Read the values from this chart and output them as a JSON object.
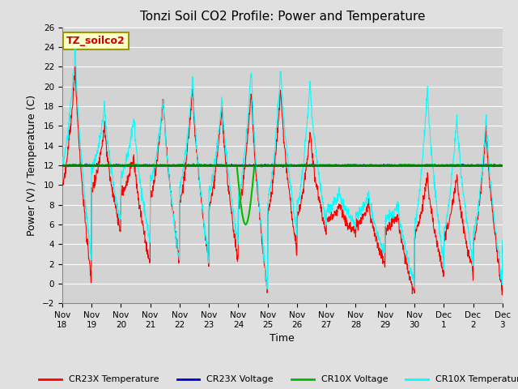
{
  "title": "Tonzi Soil CO2 Profile: Power and Temperature",
  "ylabel": "Power (V) / Temperature (C)",
  "xlabel": "Time",
  "ylim": [
    -2,
    26
  ],
  "yticks": [
    -2,
    0,
    2,
    4,
    6,
    8,
    10,
    12,
    14,
    16,
    18,
    20,
    22,
    24,
    26
  ],
  "x_tick_labels": [
    "Nov 18",
    "Nov 19",
    "Nov 20",
    "Nov 21",
    "Nov 22",
    "Nov 23",
    "Nov 24",
    "Nov 25",
    "Nov 26",
    "Nov 27",
    "Nov 28",
    "Nov 29",
    "Nov 30",
    "Dec 1",
    "Dec 2",
    "Dec 3"
  ],
  "horizontal_line_y": 12.0,
  "horizontal_line_color": "#008000",
  "cr23x_temp_color": "#FF0000",
  "cr23x_volt_color": "#0000CD",
  "cr10x_volt_color": "#00BB00",
  "cr10x_temp_color": "#00FFFF",
  "fig_bg_color": "#E0E0E0",
  "plot_bg_color": "#D3D3D3",
  "grid_color": "#FFFFFF",
  "legend_box_facecolor": "#FFFFCC",
  "legend_box_edgecolor": "#999900",
  "annotation_text": "TZ_soilco2",
  "annotation_color": "#CC0000",
  "title_fontsize": 11,
  "label_fontsize": 9,
  "tick_fontsize": 7.5,
  "legend_fontsize": 8
}
